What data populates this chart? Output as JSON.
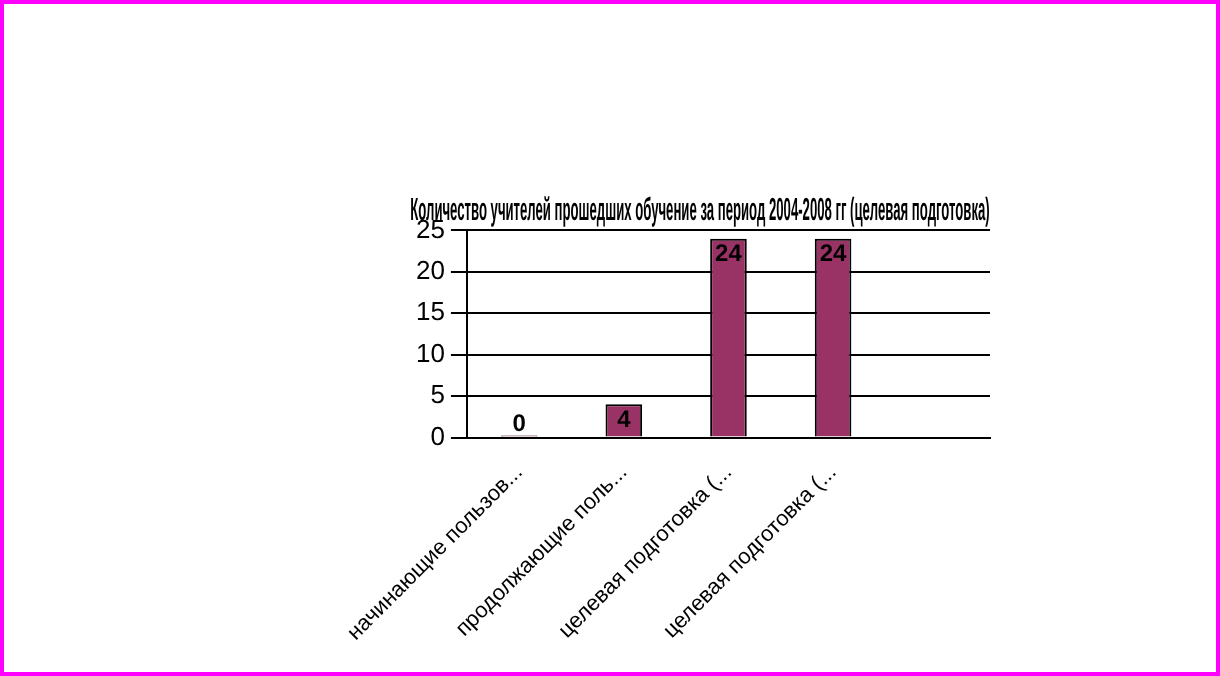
{
  "chart_data": {
    "type": "bar",
    "title": "Количество учителей прошедших обучение за период 2004-2008 гг (целевая подготовка)",
    "categories": [
      "начинающие пользов...",
      "продолжающие поль...",
      "целевая подготовка (...",
      "целевая подготовка (...",
      null
    ],
    "values": [
      0,
      4,
      24,
      24,
      null
    ],
    "color": "#993366",
    "ylim": [
      0,
      25
    ],
    "yticks": [
      0,
      5,
      10,
      15,
      20,
      25
    ],
    "grid": "y",
    "data_labels": true
  }
}
